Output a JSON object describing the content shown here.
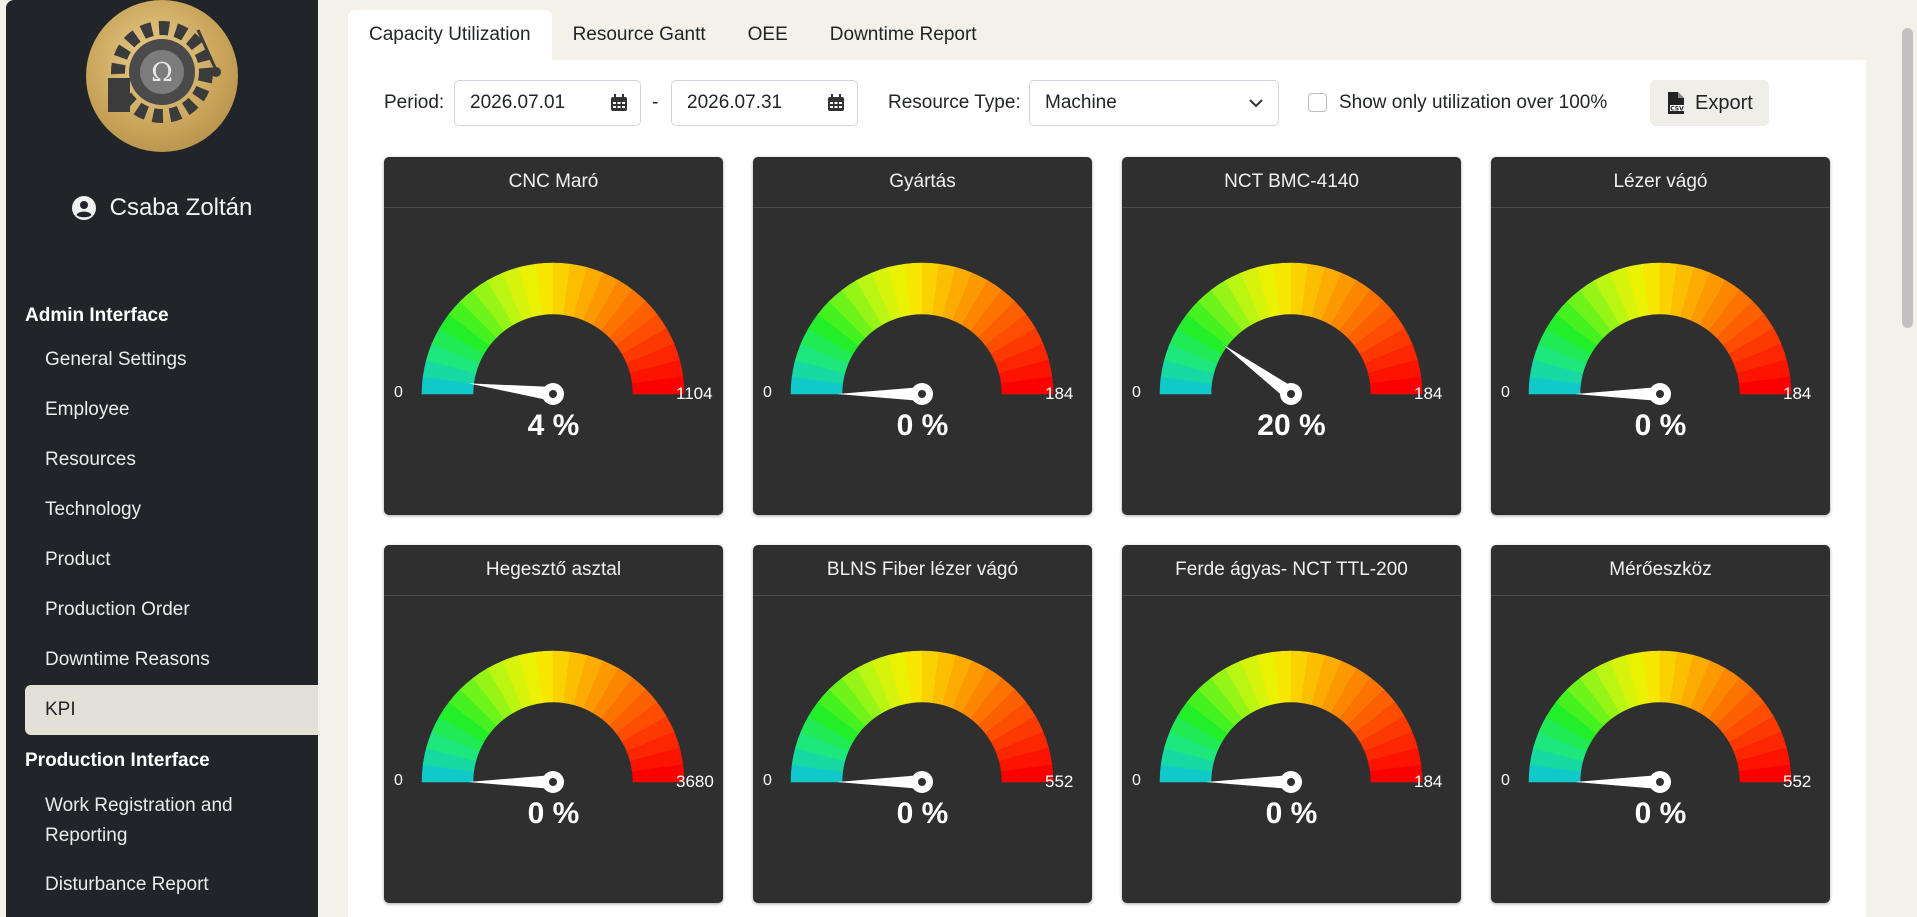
{
  "user": {
    "name": "Csaba Zoltán"
  },
  "sidebar": {
    "admin_title": "Admin Interface",
    "admin_items": [
      "General Settings",
      "Employee",
      "Resources",
      "Technology",
      "Product",
      "Production Order",
      "Downtime Reasons",
      "KPI"
    ],
    "active_item": "KPI",
    "production_title": "Production Interface",
    "production_items": [
      "Work Registration and Reporting",
      "Disturbance Report"
    ]
  },
  "tabs": [
    "Capacity Utilization",
    "Resource Gantt",
    "OEE",
    "Downtime Report"
  ],
  "active_tab": "Capacity Utilization",
  "filters": {
    "period_label": "Period:",
    "date_from": "2026.07.01",
    "separator": "-",
    "date_to": "2026.07.31",
    "resource_type_label": "Resource Type:",
    "resource_type_value": "Machine",
    "over_100_label": "Show only utilization over 100%",
    "over_100_checked": false,
    "export_label": "Export"
  },
  "gauges": [
    {
      "name": "CNC Maró",
      "percent": 4,
      "percent_text": "4 %",
      "min_text": "0",
      "max_text": "1104"
    },
    {
      "name": "Gyártás",
      "percent": 0,
      "percent_text": "0 %",
      "min_text": "0",
      "max_text": "184"
    },
    {
      "name": "NCT BMC-4140",
      "percent": 20,
      "percent_text": "20 %",
      "min_text": "0",
      "max_text": "184"
    },
    {
      "name": "Lézer vágó",
      "percent": 0,
      "percent_text": "0 %",
      "min_text": "0",
      "max_text": "184"
    },
    {
      "name": "Hegesztő asztal",
      "percent": 0,
      "percent_text": "0 %",
      "min_text": "0",
      "max_text": "3680"
    },
    {
      "name": "BLNS Fiber lézer vágó",
      "percent": 0,
      "percent_text": "0 %",
      "min_text": "0",
      "max_text": "552"
    },
    {
      "name": "Ferde ágyas- NCT TTL-200",
      "percent": 0,
      "percent_text": "0 %",
      "min_text": "0",
      "max_text": "184"
    },
    {
      "name": "Mérőeszköz",
      "percent": 0,
      "percent_text": "0 %",
      "min_text": "0",
      "max_text": "552"
    }
  ],
  "gauge_colors": [
    "#12c9c9",
    "#1ee87a",
    "#22f022",
    "#7bf51a",
    "#c8f510",
    "#f5f000",
    "#fcc800",
    "#fca000",
    "#fc7800",
    "#fc5000",
    "#fc2800",
    "#fc0000"
  ]
}
